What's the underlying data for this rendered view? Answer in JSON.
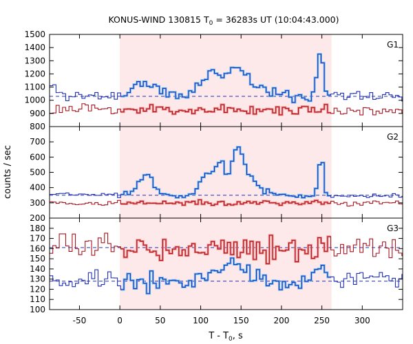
{
  "title_prefix": "KONUS-WIND 130815 T",
  "title_sub": "0",
  "title_suffix": " = 36283s UT (10:04:43.000)",
  "xlabel_prefix": "T - T",
  "xlabel_sub": "0",
  "xlabel_suffix": ", s",
  "ylabel": "counts / sec",
  "colors": {
    "blue": "#1f2fb5",
    "blue_light": "#6fc0f0",
    "red": "#a8141e",
    "red_light": "#f08a8a",
    "shade": "#fde8ea"
  },
  "chart_data": {
    "type": "line",
    "xlim": [
      -87,
      350
    ],
    "x_ticks": [
      -50,
      0,
      50,
      100,
      150,
      200,
      250,
      300
    ],
    "x_tick_labels": [
      "-50",
      "0",
      "50",
      "100",
      "150",
      "200",
      "250",
      "300"
    ],
    "bin_width": 4,
    "shaded_interval": [
      0,
      262
    ],
    "panels": [
      {
        "label": "G1",
        "ylim": [
          800,
          1500
        ],
        "y_ticks": [
          800,
          900,
          1000,
          1100,
          1200,
          1300,
          1400,
          1500
        ],
        "y_tick_labels": [
          "800",
          "900",
          "1000",
          "1100",
          "1200",
          "1300",
          "1400",
          "1500"
        ],
        "background_levels": [
          1030
        ],
        "series": [
          {
            "color": "blue",
            "noise": 22,
            "seed": 11,
            "baseline": [
              [
                -87,
                1035
              ],
              [
                350,
                1030
              ]
            ],
            "peaks": [
              [
                -84,
                70,
                6
              ],
              [
                30,
                105,
                12
              ],
              [
                55,
                10,
                8
              ],
              [
                118,
                170,
                10
              ],
              [
                100,
                70,
                8
              ],
              [
                145,
                210,
                11
              ],
              [
                170,
                60,
                15
              ],
              [
                248,
                340,
                3.5
              ],
              [
                260,
                40,
                5
              ]
            ]
          },
          {
            "color": "red",
            "noise": 20,
            "seed": 23,
            "baseline": [
              [
                -87,
                930
              ],
              [
                350,
                925
              ]
            ],
            "peaks": []
          }
        ]
      },
      {
        "label": "G2",
        "ylim": [
          200,
          800
        ],
        "y_ticks": [
          200,
          300,
          400,
          500,
          600,
          700,
          800
        ],
        "y_tick_labels": [
          "200",
          "300",
          "400",
          "500",
          "600",
          "700",
          "800"
        ],
        "background_levels": [
          350
        ],
        "series": [
          {
            "color": "blue",
            "noise": 9,
            "seed": 37,
            "baseline": [
              [
                -87,
                355
              ],
              [
                350,
                345
              ]
            ],
            "peaks": [
              [
                32,
                140,
                9
              ],
              [
                110,
                140,
                10
              ],
              [
                125,
                180,
                5
              ],
              [
                145,
                290,
                7
              ],
              [
                158,
                90,
                8
              ],
              [
                172,
                40,
                10
              ],
              [
                249,
                270,
                3
              ]
            ]
          },
          {
            "color": "red",
            "noise": 9,
            "seed": 41,
            "baseline": [
              [
                -87,
                298
              ],
              [
                350,
                300
              ]
            ],
            "peaks": []
          }
        ]
      },
      {
        "label": "G3",
        "ylim": [
          100,
          190
        ],
        "y_ticks": [
          100,
          110,
          120,
          130,
          140,
          150,
          160,
          170,
          180
        ],
        "y_tick_labels": [
          "100",
          "110",
          "120",
          "130",
          "140",
          "150",
          "160",
          "170",
          "180"
        ],
        "background_levels": [
          128,
          161
        ],
        "series": [
          {
            "color": "red",
            "noise": 6,
            "seed": 53,
            "baseline": [
              [
                -87,
                162
              ],
              [
                350,
                160
              ]
            ],
            "peaks": []
          },
          {
            "color": "blue",
            "noise": 5.5,
            "seed": 67,
            "baseline": [
              [
                -87,
                128
              ],
              [
                350,
                128
              ]
            ],
            "peaks": [
              [
                120,
                14,
                12
              ],
              [
                145,
                18,
                8
              ],
              [
                248,
                16,
                6
              ]
            ]
          }
        ]
      }
    ]
  }
}
